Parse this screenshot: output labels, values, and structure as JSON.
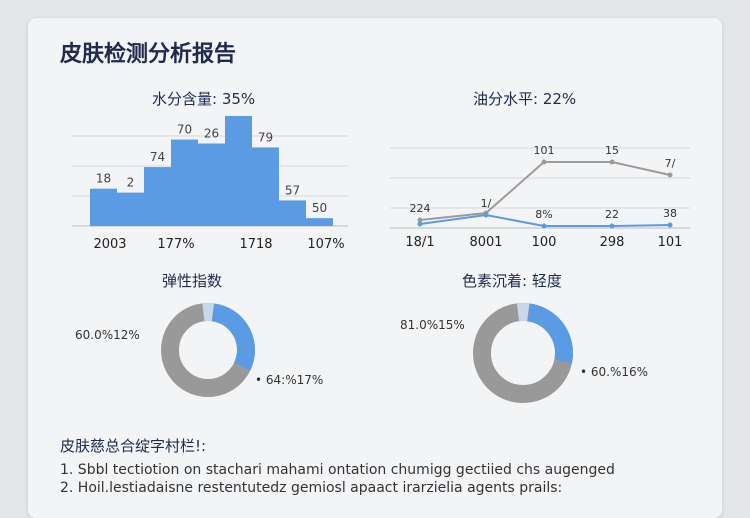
{
  "report": {
    "title": "皮肤检测分析报告"
  },
  "water": {
    "label": "水分含量: 35%",
    "bars": [
      {
        "value": 38,
        "label": "18"
      },
      {
        "value": 34,
        "label": "2"
      },
      {
        "value": 60,
        "label": "74"
      },
      {
        "value": 88,
        "label": "70"
      },
      {
        "value": 84,
        "label": "26"
      },
      {
        "value": 112,
        "label": ""
      },
      {
        "value": 80,
        "label": "79"
      },
      {
        "value": 26,
        "label": "57"
      },
      {
        "value": 8,
        "label": "50"
      }
    ],
    "x_labels": [
      "2003",
      "177%",
      "1718",
      "107%"
    ],
    "color": "#5b9be4"
  },
  "oil": {
    "label": "油分水平: 22%",
    "x_labels": [
      "18/1",
      "8001",
      "100",
      "298",
      "101"
    ],
    "series_gray": [
      {
        "value": 8,
        "label": "224"
      },
      {
        "value": 15,
        "label": ""
      },
      {
        "value": 66,
        "label": "101"
      },
      {
        "value": 66,
        "label": "15"
      },
      {
        "value": 53,
        "label": "7/"
      }
    ],
    "series_blue": [
      {
        "value": 4,
        "label": ""
      },
      {
        "value": 13,
        "label": "1/"
      },
      {
        "value": 2,
        "label": "8%"
      },
      {
        "value": 2,
        "label": "22"
      },
      {
        "value": 3,
        "label": "38"
      }
    ],
    "gray_color": "#9b9b9b",
    "blue_color": "#5b9be4"
  },
  "elasticity": {
    "label": "弹性指数",
    "left_label": "60.0%12%",
    "right_label": "• 64:%17%",
    "percent": 0.3,
    "colors": {
      "main": "#999999",
      "highlight": "#5b9be4",
      "light": "#c7d8ec"
    }
  },
  "pigment": {
    "label": "色素沉着: 轻度",
    "left_label": "81.0%15%",
    "right_label": "• 60.%16%",
    "percent": 0.26,
    "colors": {
      "main": "#999999",
      "highlight": "#5b9be4",
      "light": "#c7d8ec"
    }
  },
  "notes": {
    "title": "皮肤慈总合绽字村栏!:",
    "items": [
      "1.  Sbbl tectiotion on stachari mahami ontation chumigg gectiied chs augenged",
      "2.  Hoil.lestiadaisne restentutedz gemiosl apaact irarzielia agents prails:"
    ]
  }
}
